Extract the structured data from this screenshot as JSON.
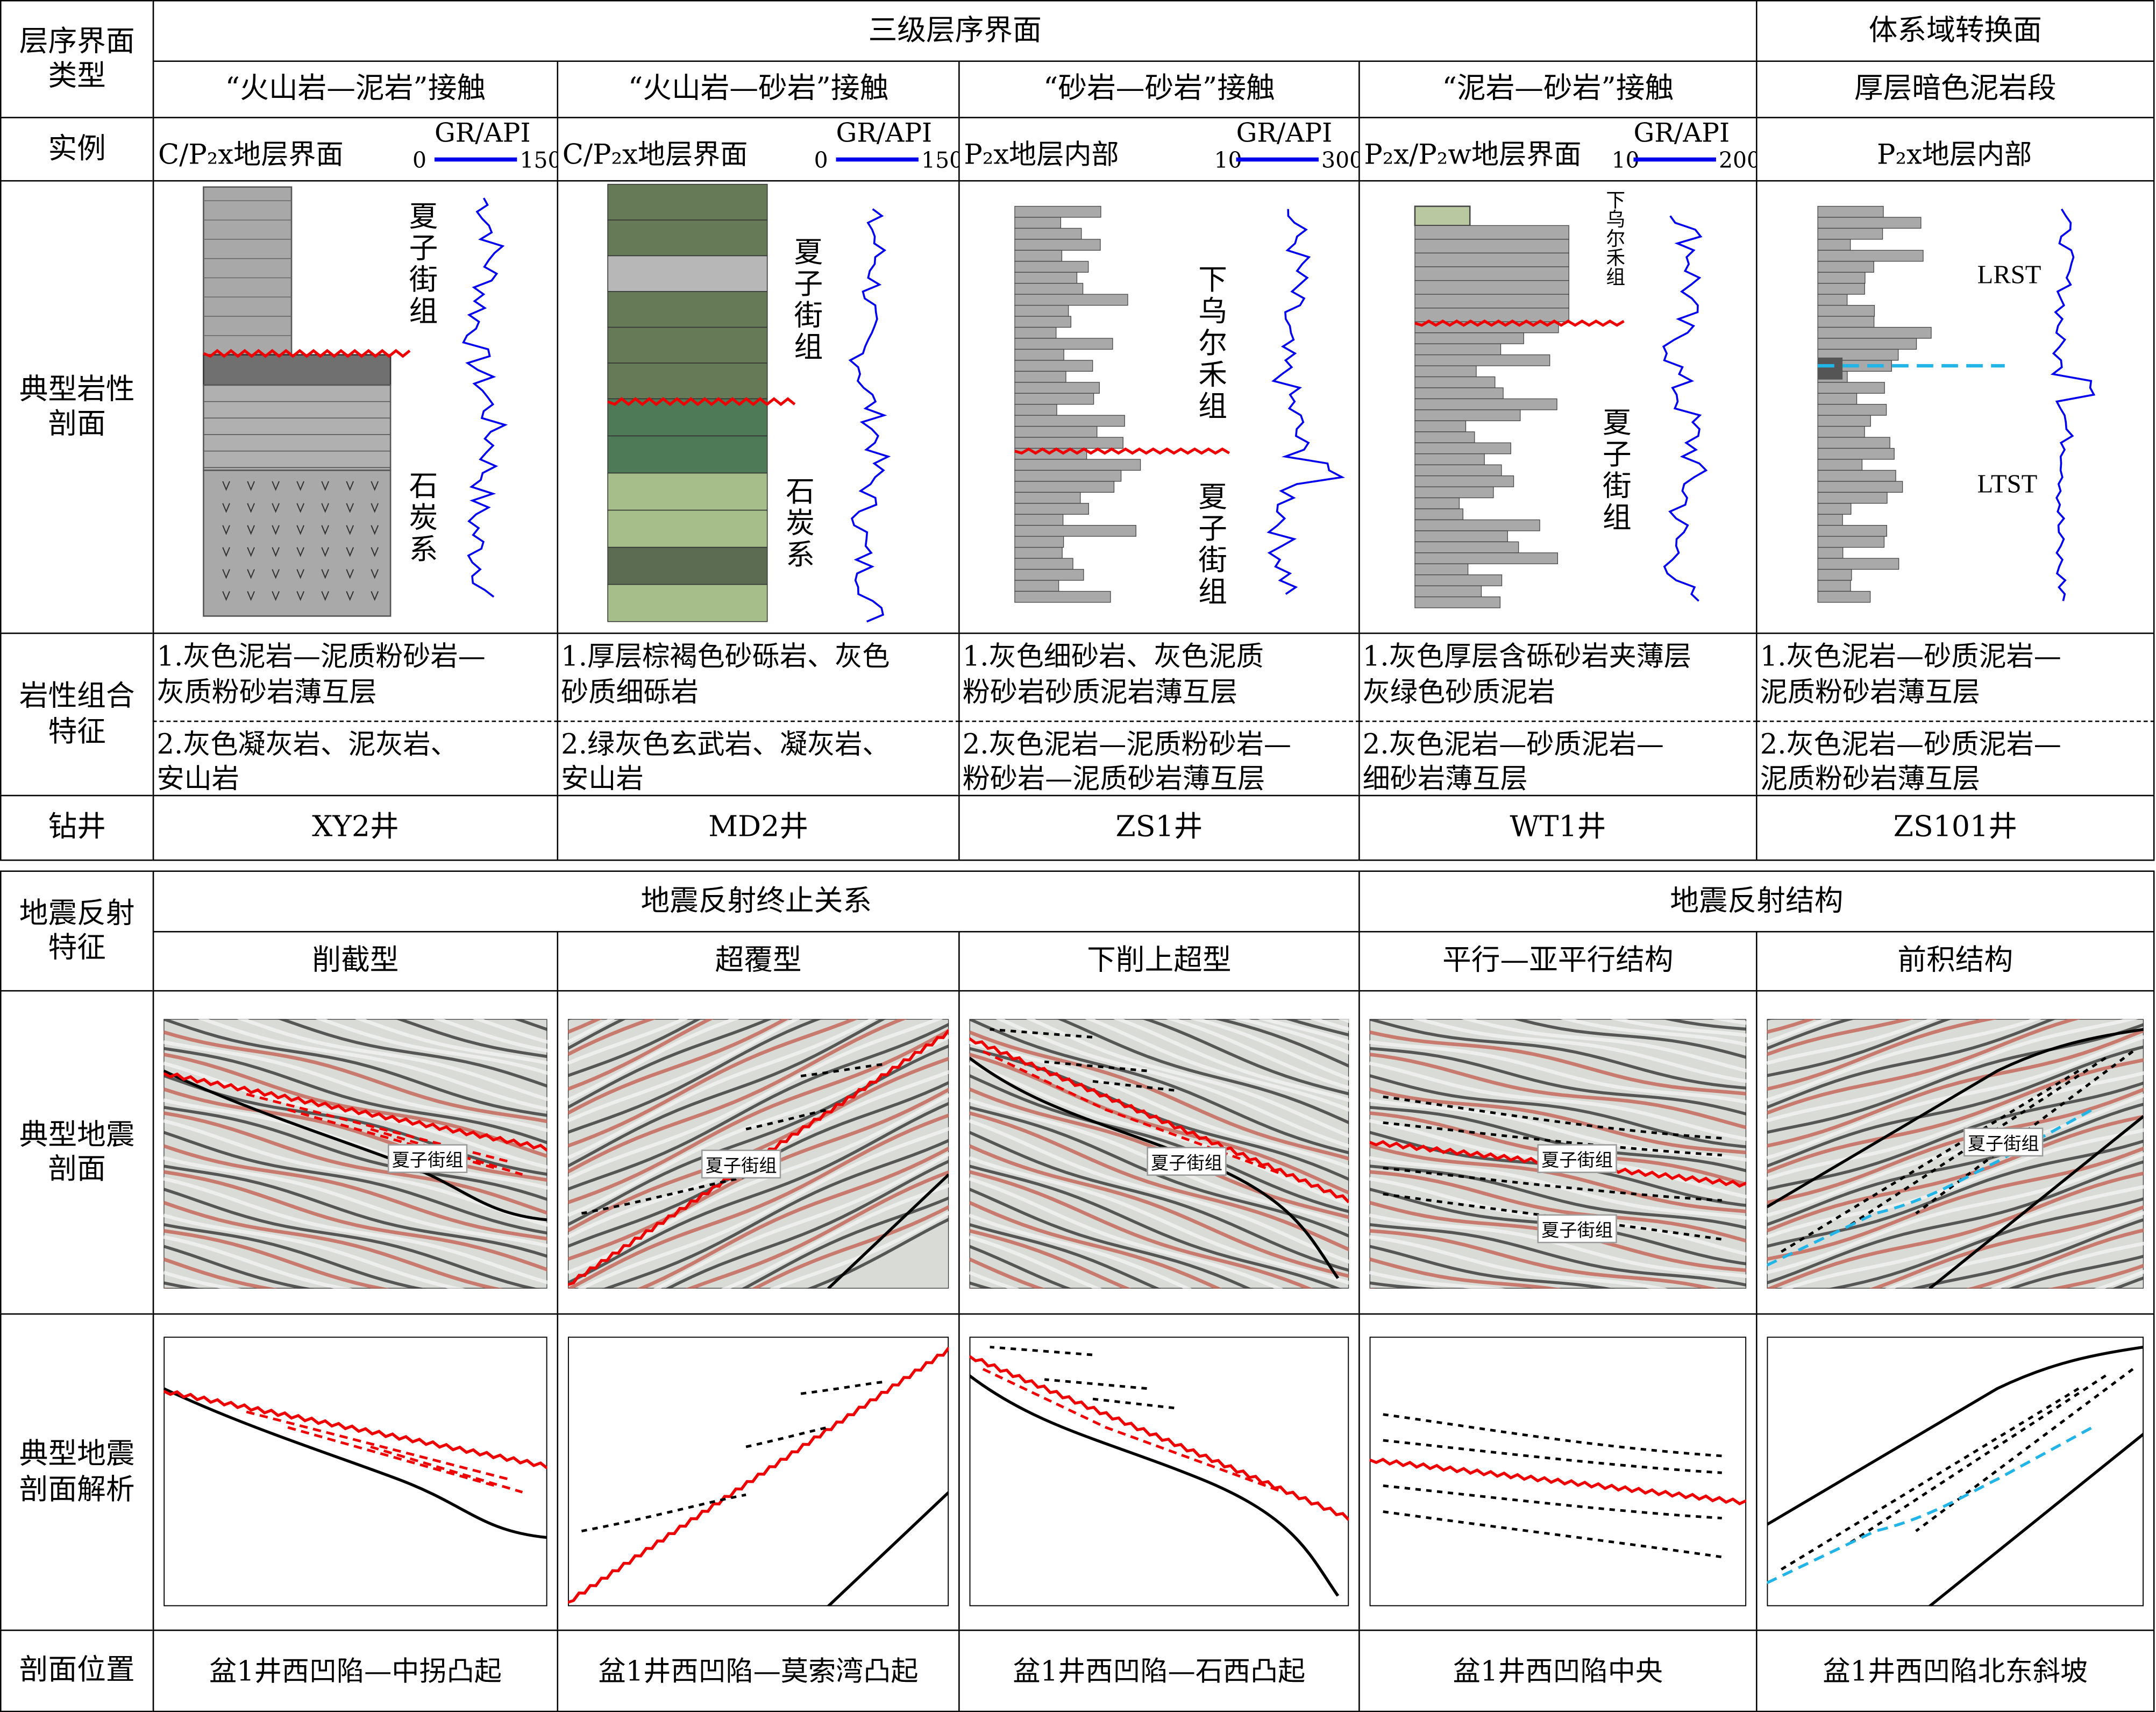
{
  "top": {
    "row_label_type": "层序界面类型",
    "group_third_order": "三级层序界面",
    "group_systems_tract": "体系域转换面",
    "row_label_example": "实例",
    "row_label_lithology": "典型岩性剖面",
    "row_label_features": "岩性组合特征",
    "row_label_well": "钻井",
    "columns": [
      {
        "type": "“火山岩—泥岩”接触",
        "example": "C/P₂x地层界面",
        "gr_label": "GR/API",
        "gr_min": "0",
        "gr_max": "150",
        "formations": [
          "夏子街组",
          "石炭系"
        ],
        "feature1": [
          "1.灰色泥岩—泥质粉砂岩—",
          "灰质粉砂岩薄互层"
        ],
        "feature2": [
          "2.灰色凝灰岩、泥灰岩、",
          "安山岩"
        ],
        "well": "XY2井"
      },
      {
        "type": "“火山岩—砂岩”接触",
        "example": "C/P₂x地层界面",
        "gr_label": "GR/API",
        "gr_min": "0",
        "gr_max": "150",
        "formations": [
          "夏子街组",
          "石炭系"
        ],
        "feature1": [
          "1.厚层棕褐色砂砾岩、灰色",
          "砂质细砾岩"
        ],
        "feature2": [
          "2.绿灰色玄武岩、凝灰岩、",
          "安山岩"
        ],
        "well": "MD2井"
      },
      {
        "type": "“砂岩—砂岩”接触",
        "example": "P₂x地层内部",
        "gr_label": "GR/API",
        "gr_min": "10",
        "gr_max": "300",
        "formations": [
          "下乌尔禾组",
          "夏子街组"
        ],
        "feature1": [
          "1.灰色细砂岩、灰色泥质",
          "粉砂岩砂质泥岩薄互层"
        ],
        "feature2": [
          "2.灰色泥岩—泥质粉砂岩—",
          "粉砂岩—泥质砂岩薄互层"
        ],
        "well": "ZS1井"
      },
      {
        "type": "“泥岩—砂岩”接触",
        "example": "P₂x/P₂w地层界面",
        "gr_label": "GR/API",
        "gr_min": "10",
        "gr_max": "200",
        "formations": [
          "下乌尔禾组",
          "夏子街组"
        ],
        "feature1": [
          "1.灰色厚层含砾砂岩夹薄层",
          "灰绿色砂质泥岩"
        ],
        "feature2": [
          "2.灰色泥岩—砂质泥岩—",
          "细砂岩薄互层"
        ],
        "well": "WT1井"
      },
      {
        "type": "厚层暗色泥岩段",
        "example": "P₂x地层内部",
        "gr_label": "",
        "gr_min": "",
        "gr_max": "",
        "formations": [
          "LRST",
          "LTST"
        ],
        "feature1": [
          "1.灰色泥岩—砂质泥岩—",
          "泥质粉砂岩薄互层"
        ],
        "feature2": [
          "2.灰色泥岩—砂质泥岩—",
          "泥质粉砂岩薄互层"
        ],
        "well": "ZS101井"
      }
    ]
  },
  "bottom": {
    "row_label_seismic": "地震反射特征",
    "group_termination": "地震反射终止关系",
    "group_structure": "地震反射结构",
    "row_label_section": "典型地震剖面",
    "row_label_interp": "典型地震剖面解析",
    "row_label_location": "剖面位置",
    "columns": [
      {
        "type": "削截型",
        "labels": [
          "夏子街组"
        ],
        "location": "盆1井西凹陷—中拐凸起"
      },
      {
        "type": "超覆型",
        "labels": [
          "夏子街组"
        ],
        "location": "盆1井西凹陷—莫索湾凸起"
      },
      {
        "type": "下削上超型",
        "labels": [
          "夏子街组"
        ],
        "location": "盆1井西凹陷—石西凸起"
      },
      {
        "type": "平行—亚平行结构",
        "labels": [
          "夏子街组",
          "夏子街组"
        ],
        "location": "盆1井西凹陷中央"
      },
      {
        "type": "前积结构",
        "labels": [
          "夏子街组"
        ],
        "location": "盆1井西凹陷北东斜坡"
      }
    ]
  },
  "colors": {
    "gr_curve": "#0000ee",
    "boundary": "#ee0000",
    "tract_boundary": "#22b4e6",
    "lith_gray": "#a9a9a9",
    "lith_green": "#5f6e50"
  }
}
